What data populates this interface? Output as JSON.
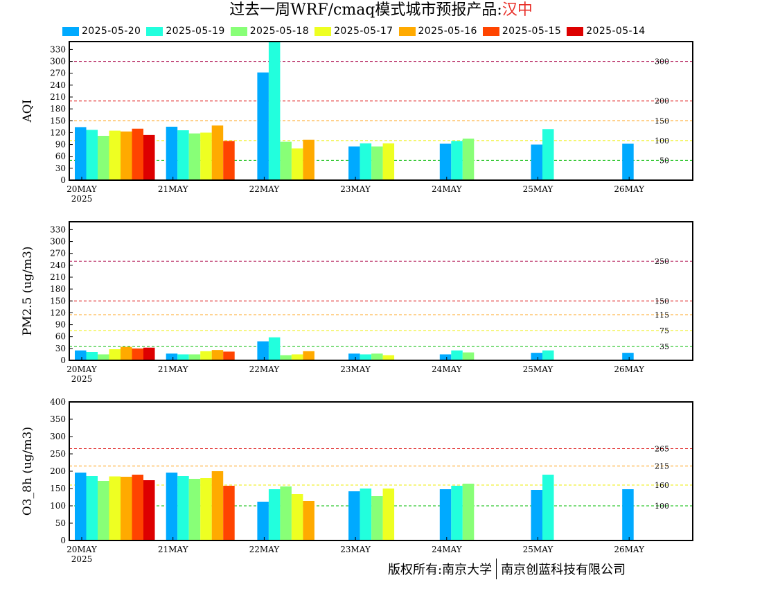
{
  "title": {
    "main": "过去一周WRF/cmaq模式城市预报产品:",
    "city": "汉中"
  },
  "footer": {
    "left": "版权所有:南京大学",
    "right": "南京创蓝科技有限公司"
  },
  "legend": [
    {
      "label": "2025-05-20",
      "color": "#00aaff"
    },
    {
      "label": "2025-05-19",
      "color": "#22ffdd"
    },
    {
      "label": "2025-05-18",
      "color": "#88ff77"
    },
    {
      "label": "2025-05-17",
      "color": "#eeff22"
    },
    {
      "label": "2025-05-16",
      "color": "#ffaa00"
    },
    {
      "label": "2025-05-15",
      "color": "#ff4400"
    },
    {
      "label": "2025-05-14",
      "color": "#dd0000"
    }
  ],
  "chart_data": [
    {
      "type": "bar",
      "ylabel": "AQI",
      "categories": [
        "20MAY",
        "21MAY",
        "22MAY",
        "23MAY",
        "24MAY",
        "25MAY",
        "26MAY"
      ],
      "year_label": "2025",
      "ylim": [
        0,
        350
      ],
      "yticks": [
        0,
        30,
        60,
        90,
        120,
        150,
        180,
        210,
        240,
        270,
        300,
        330
      ],
      "ref_lines": [
        {
          "value": 300,
          "label": "300",
          "color": "#aa0044"
        },
        {
          "value": 200,
          "label": "200",
          "color": "#dd1111"
        },
        {
          "value": 150,
          "label": "150",
          "color": "#ff9900"
        },
        {
          "value": 100,
          "label": "100",
          "color": "#eeee00"
        },
        {
          "value": 50,
          "label": "50",
          "color": "#00bb00"
        }
      ],
      "series": [
        {
          "name": "2025-05-20",
          "values": [
            134,
            135,
            272,
            85,
            92,
            90,
            92
          ]
        },
        {
          "name": "2025-05-19",
          "values": [
            127,
            126,
            350,
            93,
            99,
            129,
            null
          ]
        },
        {
          "name": "2025-05-18",
          "values": [
            112,
            118,
            97,
            85,
            105,
            null,
            null
          ]
        },
        {
          "name": "2025-05-17",
          "values": [
            125,
            120,
            80,
            93,
            null,
            null,
            null
          ]
        },
        {
          "name": "2025-05-16",
          "values": [
            123,
            138,
            102,
            null,
            null,
            null,
            null
          ]
        },
        {
          "name": "2025-05-15",
          "values": [
            130,
            99,
            null,
            null,
            null,
            null,
            null
          ]
        },
        {
          "name": "2025-05-14",
          "values": [
            114,
            null,
            null,
            null,
            null,
            null,
            null
          ]
        }
      ]
    },
    {
      "type": "bar",
      "ylabel": "PM2.5 (ug/m3)",
      "categories": [
        "20MAY",
        "21MAY",
        "22MAY",
        "23MAY",
        "24MAY",
        "25MAY",
        "26MAY"
      ],
      "year_label": "2025",
      "ylim": [
        0,
        350
      ],
      "yticks": [
        0,
        30,
        60,
        90,
        120,
        150,
        180,
        210,
        240,
        270,
        300,
        330
      ],
      "ref_lines": [
        {
          "value": 250,
          "label": "250",
          "color": "#aa0044"
        },
        {
          "value": 150,
          "label": "150",
          "color": "#dd1111"
        },
        {
          "value": 115,
          "label": "115",
          "color": "#ff9900"
        },
        {
          "value": 75,
          "label": "75",
          "color": "#eeee00"
        },
        {
          "value": 35,
          "label": "35",
          "color": "#00bb00"
        }
      ],
      "series": [
        {
          "name": "2025-05-20",
          "values": [
            25,
            17,
            48,
            17,
            15,
            19,
            19
          ]
        },
        {
          "name": "2025-05-19",
          "values": [
            21,
            15,
            58,
            15,
            25,
            25,
            null
          ]
        },
        {
          "name": "2025-05-18",
          "values": [
            15,
            15,
            13,
            17,
            20,
            null,
            null
          ]
        },
        {
          "name": "2025-05-17",
          "values": [
            28,
            23,
            15,
            13,
            null,
            null,
            null
          ]
        },
        {
          "name": "2025-05-16",
          "values": [
            34,
            26,
            23,
            null,
            null,
            null,
            null
          ]
        },
        {
          "name": "2025-05-15",
          "values": [
            30,
            22,
            null,
            null,
            null,
            null,
            null
          ]
        },
        {
          "name": "2025-05-14",
          "values": [
            32,
            null,
            null,
            null,
            null,
            null,
            null
          ]
        }
      ]
    },
    {
      "type": "bar",
      "ylabel": "O3_8h (ug/m3)",
      "categories": [
        "20MAY",
        "21MAY",
        "22MAY",
        "23MAY",
        "24MAY",
        "25MAY",
        "26MAY"
      ],
      "year_label": "2025",
      "ylim": [
        0,
        400
      ],
      "yticks": [
        0,
        50,
        100,
        150,
        200,
        250,
        300,
        350,
        400
      ],
      "ref_lines": [
        {
          "value": 265,
          "label": "265",
          "color": "#dd1111"
        },
        {
          "value": 215,
          "label": "215",
          "color": "#ff9900"
        },
        {
          "value": 160,
          "label": "160",
          "color": "#eeee00"
        },
        {
          "value": 100,
          "label": "100",
          "color": "#00bb00"
        }
      ],
      "series": [
        {
          "name": "2025-05-20",
          "values": [
            196,
            196,
            112,
            142,
            148,
            146,
            148
          ]
        },
        {
          "name": "2025-05-19",
          "values": [
            186,
            186,
            148,
            150,
            158,
            190,
            null
          ]
        },
        {
          "name": "2025-05-18",
          "values": [
            172,
            178,
            156,
            128,
            164,
            null,
            null
          ]
        },
        {
          "name": "2025-05-17",
          "values": [
            185,
            180,
            134,
            150,
            null,
            null,
            null
          ]
        },
        {
          "name": "2025-05-16",
          "values": [
            184,
            200,
            114,
            null,
            null,
            null,
            null
          ]
        },
        {
          "name": "2025-05-15",
          "values": [
            190,
            158,
            null,
            null,
            null,
            null,
            null
          ]
        },
        {
          "name": "2025-05-14",
          "values": [
            174,
            null,
            null,
            null,
            null,
            null,
            null
          ]
        }
      ]
    }
  ]
}
